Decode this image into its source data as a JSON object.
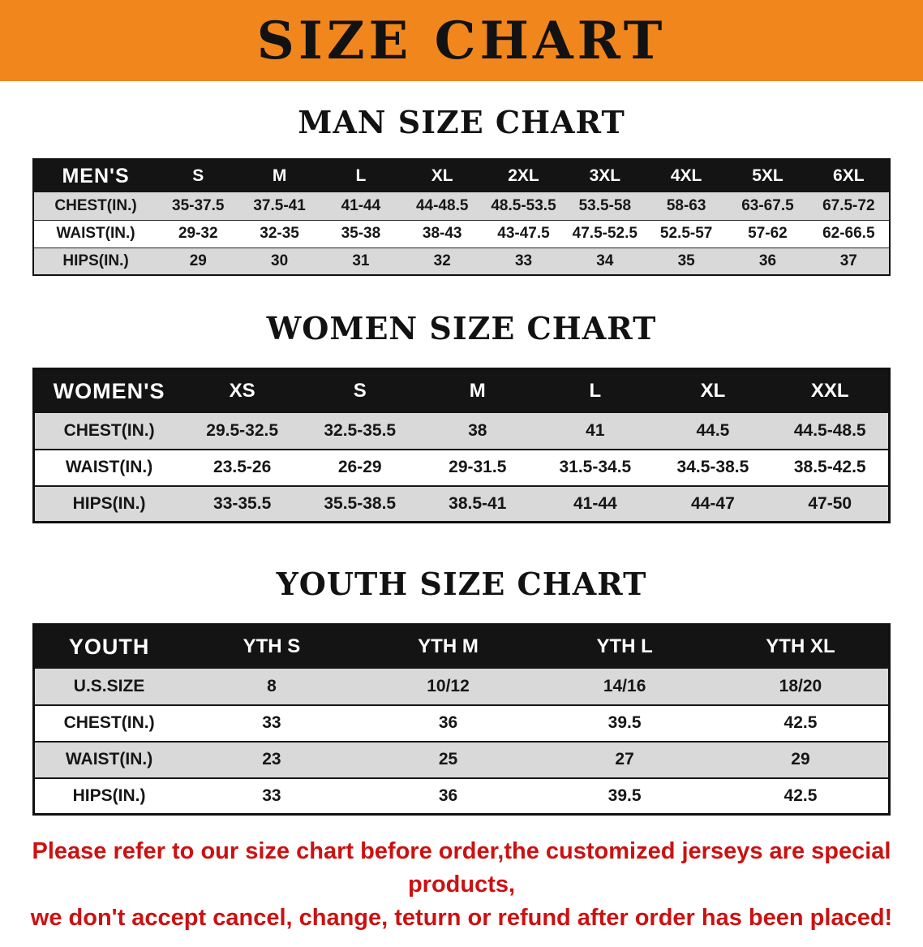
{
  "banner": {
    "title": "SIZE CHART"
  },
  "sections": [
    {
      "heading": "MAN SIZE CHART",
      "table": {
        "header": [
          "MEN'S",
          "S",
          "M",
          "L",
          "XL",
          "2XL",
          "3XL",
          "4XL",
          "5XL",
          "6XL"
        ],
        "rows": [
          {
            "label": "CHEST(IN.)",
            "values": [
              "35-37.5",
              "37.5-41",
              "41-44",
              "44-48.5",
              "48.5-53.5",
              "53.5-58",
              "58-63",
              "63-67.5",
              "67.5-72"
            ]
          },
          {
            "label": "WAIST(IN.)",
            "values": [
              "29-32",
              "32-35",
              "35-38",
              "38-43",
              "43-47.5",
              "47.5-52.5",
              "52.5-57",
              "57-62",
              "62-66.5"
            ]
          },
          {
            "label": "HIPS(IN.)",
            "values": [
              "29",
              "30",
              "31",
              "32",
              "33",
              "34",
              "35",
              "36",
              "37"
            ]
          }
        ]
      }
    },
    {
      "heading": "WOMEN SIZE CHART",
      "table": {
        "header": [
          "WOMEN'S",
          "XS",
          "S",
          "M",
          "L",
          "XL",
          "XXL"
        ],
        "rows": [
          {
            "label": "CHEST(IN.)",
            "values": [
              "29.5-32.5",
              "32.5-35.5",
              "38",
              "41",
              "44.5",
              "44.5-48.5"
            ]
          },
          {
            "label": "WAIST(IN.)",
            "values": [
              "23.5-26",
              "26-29",
              "29-31.5",
              "31.5-34.5",
              "34.5-38.5",
              "38.5-42.5"
            ]
          },
          {
            "label": "HIPS(IN.)",
            "values": [
              "33-35.5",
              "35.5-38.5",
              "38.5-41",
              "41-44",
              "44-47",
              "47-50"
            ]
          }
        ]
      }
    },
    {
      "heading": "YOUTH SIZE CHART",
      "table": {
        "header": [
          "YOUTH",
          "YTH S",
          "YTH M",
          "YTH L",
          "YTH XL"
        ],
        "rows": [
          {
            "label": "U.S.SIZE",
            "values": [
              "8",
              "10/12",
              "14/16",
              "18/20"
            ]
          },
          {
            "label": "CHEST(IN.)",
            "values": [
              "33",
              "36",
              "39.5",
              "42.5"
            ]
          },
          {
            "label": "WAIST(IN.)",
            "values": [
              "23",
              "25",
              "27",
              "29"
            ]
          },
          {
            "label": "HIPS(IN.)",
            "values": [
              "33",
              "36",
              "39.5",
              "42.5"
            ]
          }
        ]
      }
    }
  ],
  "disclaimer": {
    "line1": "Please refer to our size chart before order,the customized jerseys are special products,",
    "line2": "we don't accept cancel, change, teturn or refund after order has been placed!"
  },
  "colors": {
    "banner_orange": "#f1861d",
    "header_black": "#141414",
    "row_shade": "#d9d9d9",
    "disclaimer_red": "#cc1111"
  }
}
